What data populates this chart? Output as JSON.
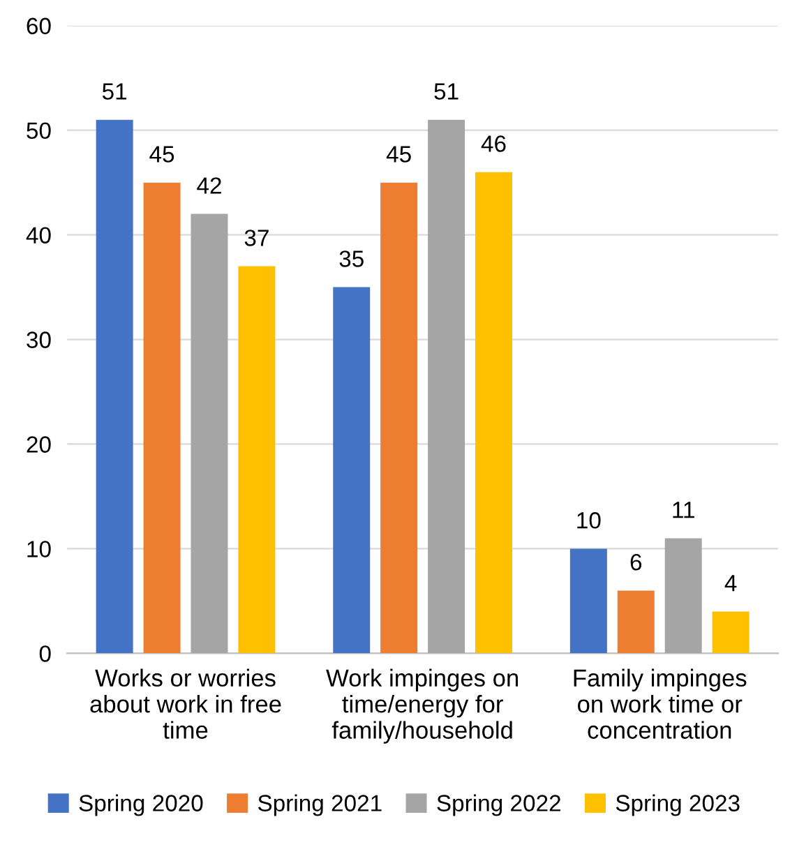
{
  "chart_data": {
    "type": "bar",
    "categories": [
      "Works or worries\nabout work in free\ntime",
      "Work impinges on\ntime/energy for\nfamily/household",
      "Family impinges\non work time or\nconcentration"
    ],
    "series": [
      {
        "name": "Spring 2020",
        "color": "#4472c4",
        "values": [
          51,
          35,
          10
        ]
      },
      {
        "name": "Spring 2021",
        "color": "#ed7d31",
        "values": [
          45,
          45,
          6
        ]
      },
      {
        "name": "Spring 2022",
        "color": "#a5a5a5",
        "values": [
          42,
          51,
          11
        ]
      },
      {
        "name": "Spring 2023",
        "color": "#ffc000",
        "values": [
          37,
          46,
          4
        ]
      }
    ],
    "ylim": [
      0,
      60
    ],
    "yticks": [
      0,
      10,
      20,
      30,
      40,
      50,
      60
    ],
    "grid": "y",
    "legend": "bottom",
    "data_labels": true
  }
}
